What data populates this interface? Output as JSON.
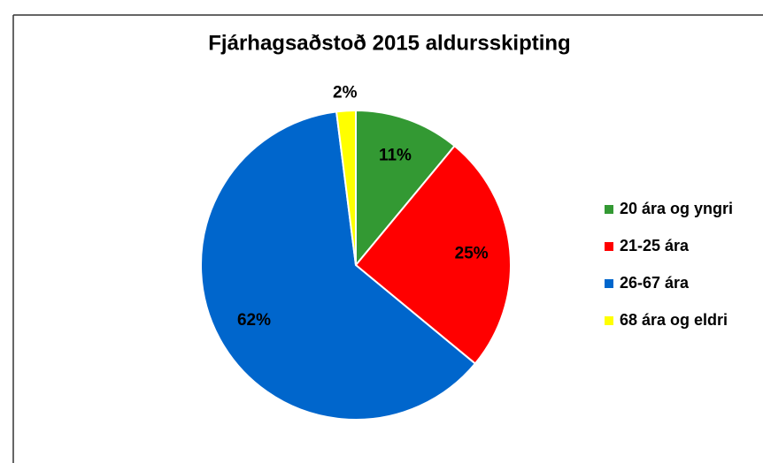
{
  "chart_data": {
    "type": "pie",
    "title": "Fjárhagsaðstoð 2015 aldursskipting",
    "categories": [
      "20 ára og yngri",
      "21-25 ára",
      "26-67 ára",
      "68 ára og eldri"
    ],
    "values": [
      11,
      25,
      62,
      2
    ],
    "value_labels": [
      "11%",
      "25%",
      "62%",
      "2%"
    ],
    "colors": [
      "#339933",
      "#ff0000",
      "#0066cc",
      "#ffff00"
    ],
    "legend": "right"
  }
}
